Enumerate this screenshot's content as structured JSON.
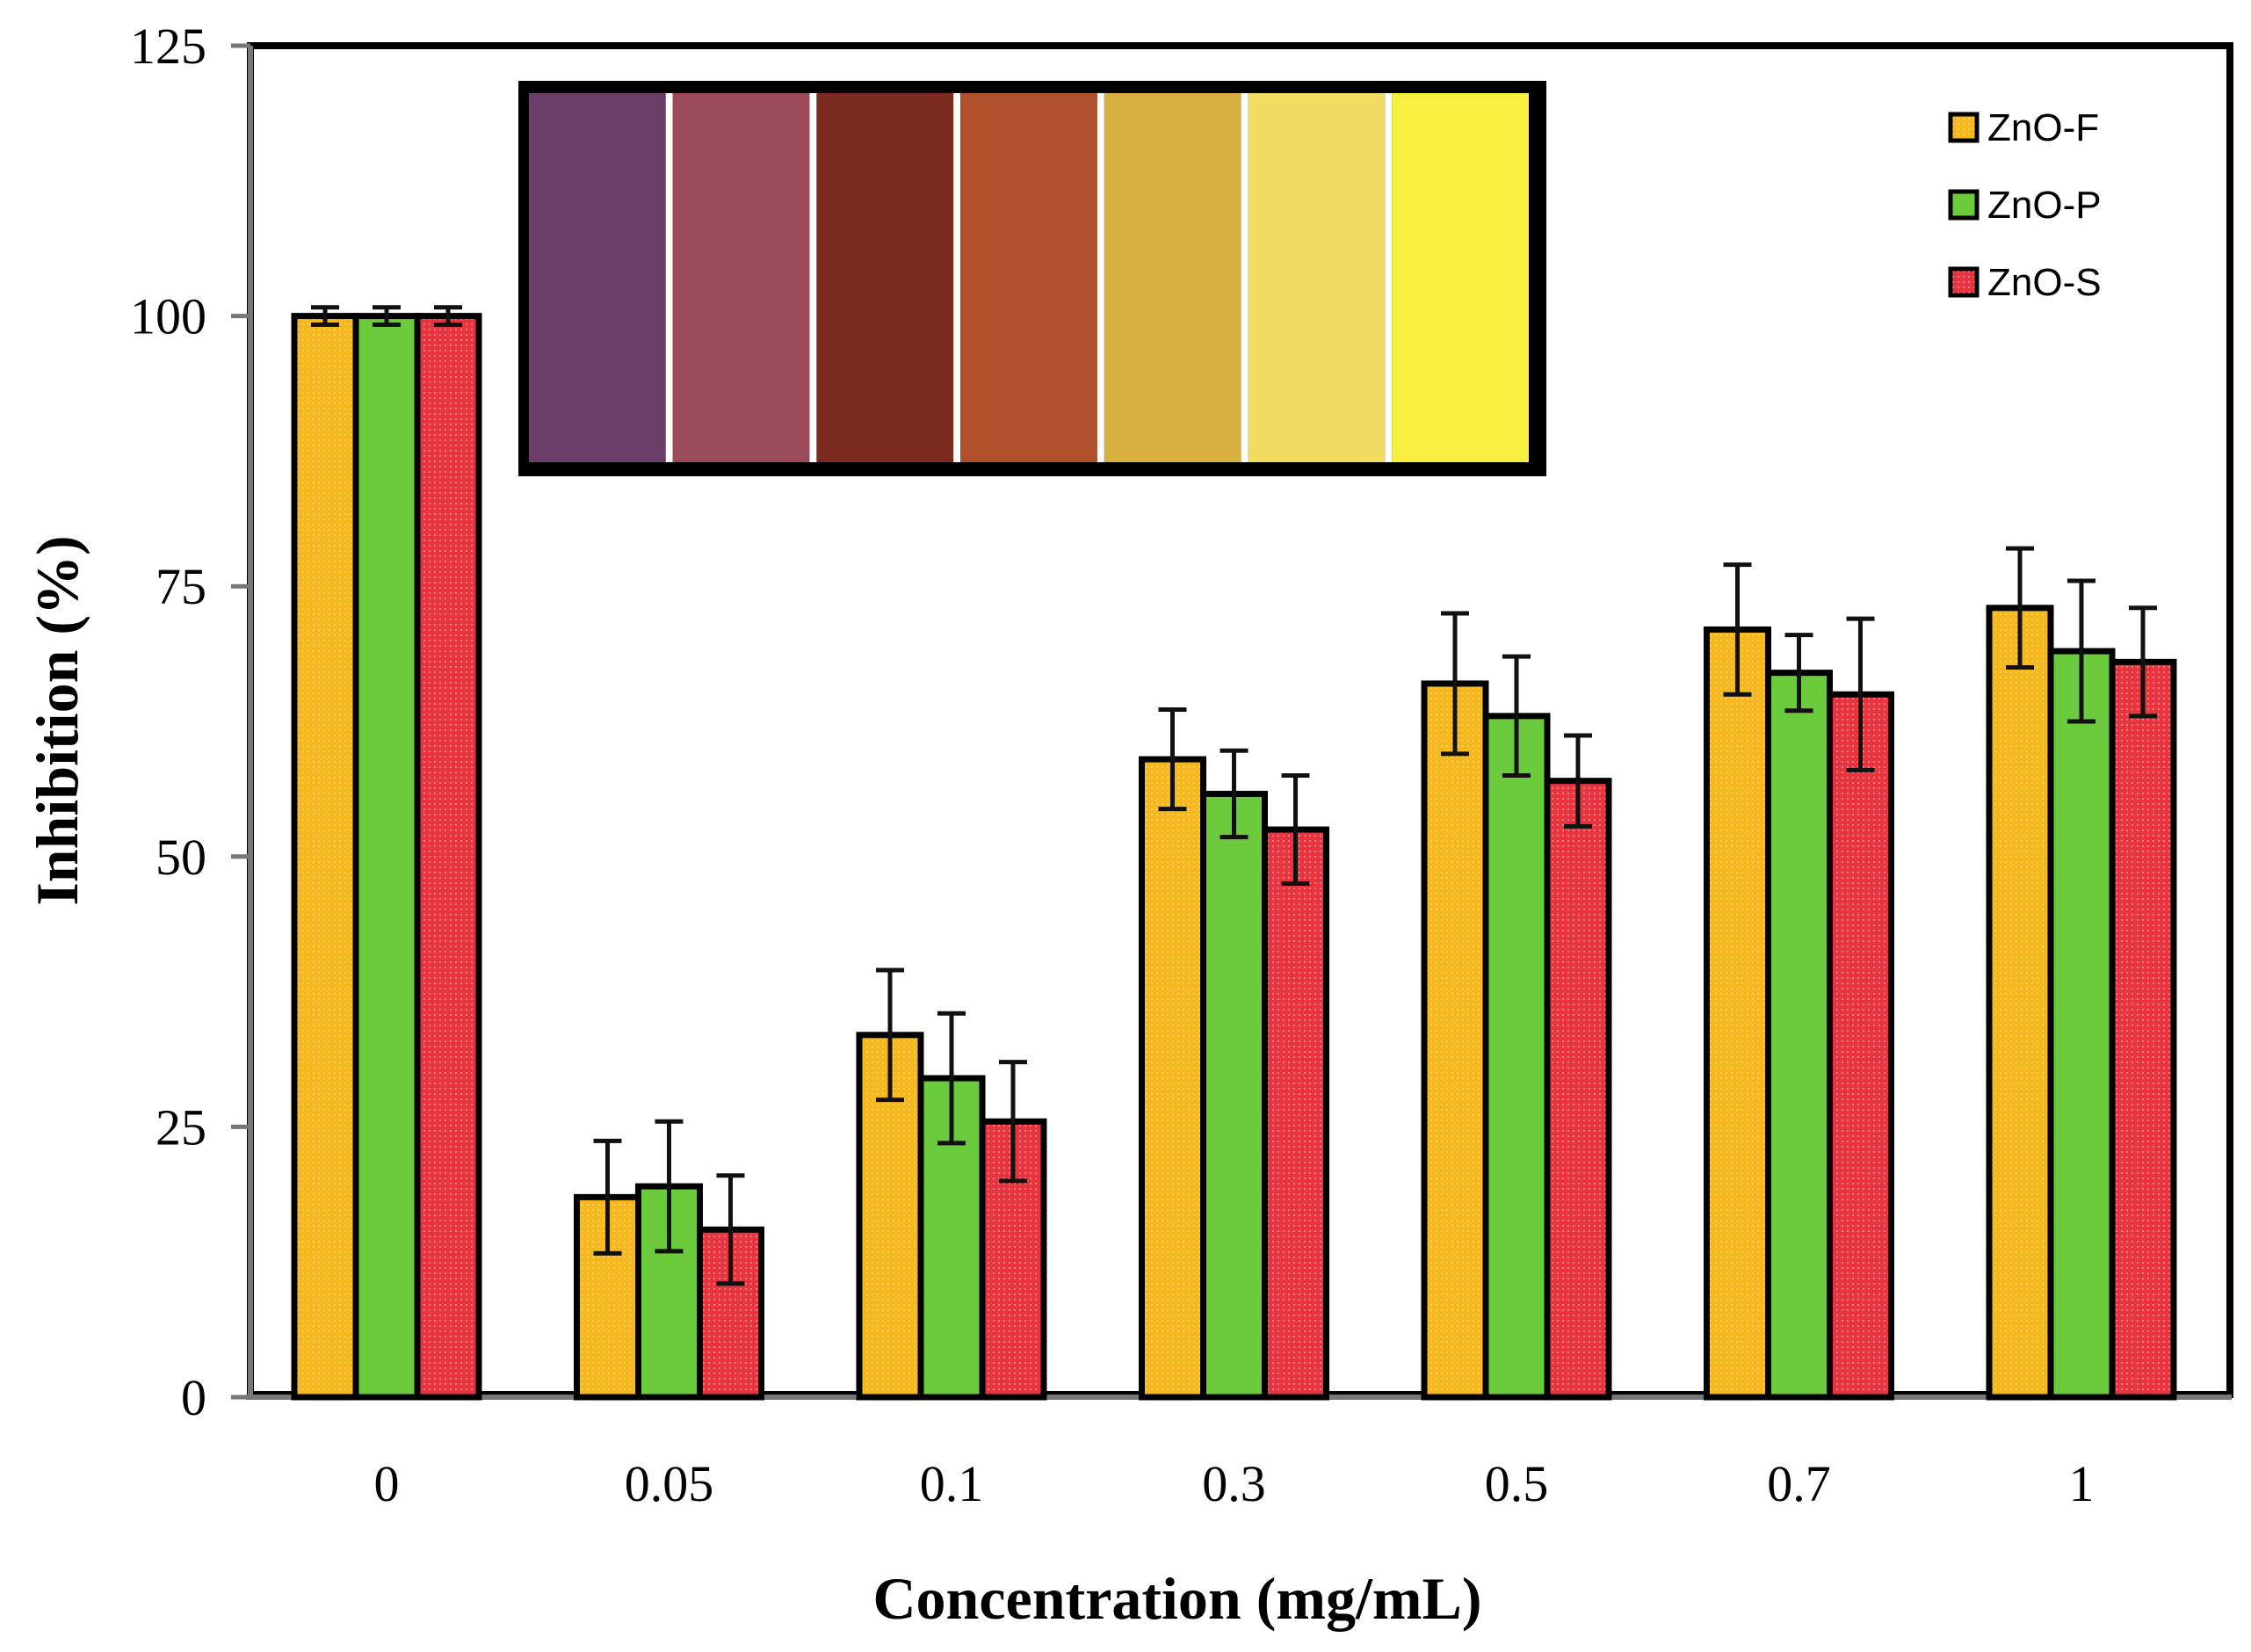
{
  "chart_data": {
    "type": "bar",
    "title": "",
    "xlabel": "Concentration (mg/mL)",
    "ylabel": "Inhibition (%)",
    "ylim": [
      0,
      125
    ],
    "yticks": [
      0,
      25,
      50,
      75,
      100,
      125
    ],
    "categories": [
      "0",
      "0.05",
      "0.1",
      "0.3",
      "0.5",
      "0.7",
      "1"
    ],
    "series": [
      {
        "name": "ZnO-F",
        "color": "#F5B820",
        "values": [
          100,
          18.5,
          33.5,
          59,
          66,
          71,
          73
        ],
        "errors": [
          0.8,
          5.2,
          6,
          4.6,
          6.5,
          6,
          5.5
        ]
      },
      {
        "name": "ZnO-P",
        "color": "#6CCB3C",
        "values": [
          100,
          19.5,
          29.5,
          55.8,
          63,
          67,
          69
        ],
        "errors": [
          0.8,
          6,
          6,
          4,
          5.5,
          3.5,
          6.5
        ]
      },
      {
        "name": "ZnO-S",
        "color": "#E8343F",
        "values": [
          100,
          15.5,
          25.5,
          52.5,
          57,
          65,
          68
        ],
        "errors": [
          0.8,
          5,
          5.5,
          5,
          4.2,
          7,
          5
        ]
      }
    ],
    "legend_position": "top-right",
    "inset": {
      "description_colors": [
        "#6B3E6A",
        "#9A4A5A",
        "#7A2A1E",
        "#B0502A",
        "#D8B040",
        "#F0DC60",
        "#F8F040"
      ]
    }
  }
}
